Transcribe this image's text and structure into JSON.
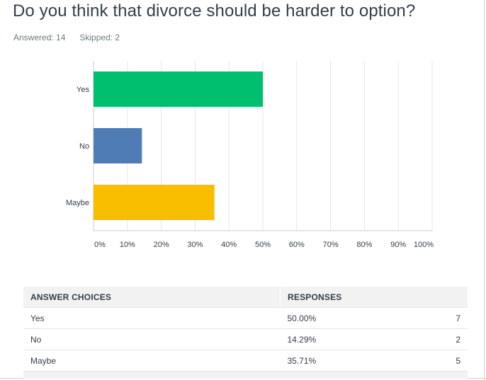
{
  "question": {
    "title": "Do you think that divorce should be harder to option?",
    "answered_label": "Answered: 14",
    "skipped_label": "Skipped: 2"
  },
  "chart_data": {
    "type": "bar",
    "orientation": "horizontal",
    "categories": [
      "Yes",
      "No",
      "Maybe"
    ],
    "values": [
      50.0,
      14.29,
      35.71
    ],
    "colors": [
      "#00bf6f",
      "#507cb6",
      "#f9be00"
    ],
    "xlim": [
      0,
      100
    ],
    "xticks": [
      "0%",
      "10%",
      "20%",
      "30%",
      "40%",
      "50%",
      "60%",
      "70%",
      "80%",
      "90%",
      "100%"
    ],
    "grid": true,
    "legend": "none"
  },
  "table": {
    "headers": {
      "choice": "ANSWER CHOICES",
      "responses": "RESPONSES"
    },
    "rows": [
      {
        "choice": "Yes",
        "percent": "50.00%",
        "count": "7"
      },
      {
        "choice": "No",
        "percent": "14.29%",
        "count": "2"
      },
      {
        "choice": "Maybe",
        "percent": "35.71%",
        "count": "5"
      }
    ]
  }
}
